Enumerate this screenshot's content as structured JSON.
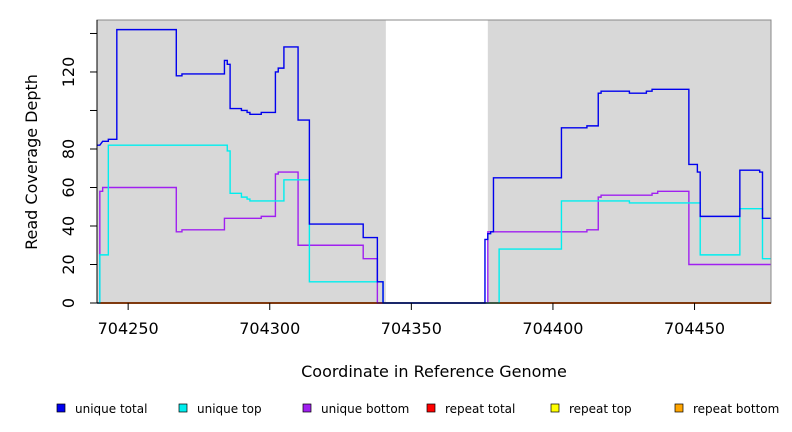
{
  "chart_data": {
    "type": "line",
    "title": "",
    "xlabel": "Coordinate in Reference Genome",
    "ylabel": "Read Coverage Depth",
    "xlim": [
      704239,
      704477
    ],
    "ylim": [
      0,
      147
    ],
    "x_ticks": [
      704250,
      704300,
      704350,
      704400,
      704450
    ],
    "x_tick_labels": [
      "704250",
      "704300",
      "704350",
      "704400",
      "704450"
    ],
    "y_ticks": [
      0,
      20,
      40,
      60,
      80,
      100,
      120,
      140
    ],
    "y_tick_labels": [
      "0",
      "20",
      "40",
      "60",
      "80",
      "",
      "120",
      ""
    ],
    "shaded_regions": [
      [
        704239,
        704341
      ],
      [
        704377,
        704477
      ]
    ],
    "shade_color": "#d8d8d8",
    "legend_position": "bottom",
    "series": [
      {
        "name": "unique total",
        "color": "#0000ee",
        "x": [
          704239,
          704240,
          704241,
          704243,
          704243,
          704246,
          704246,
          704267,
          704267,
          704269,
          704269,
          704284,
          704284,
          704285,
          704285,
          704286,
          704286,
          704290,
          704290,
          704292,
          704292,
          704293,
          704293,
          704297,
          704297,
          704302,
          704302,
          704303,
          704303,
          704305,
          704305,
          704310,
          704310,
          704314,
          704314,
          704333,
          704333,
          704338,
          704338,
          704340,
          704340,
          704341,
          704341,
          704376,
          704376,
          704377,
          704377,
          704378,
          704378,
          704379,
          704379,
          704380,
          704380,
          704403,
          704403,
          704412,
          704412,
          704416,
          704416,
          704417,
          704417,
          704427,
          704427,
          704433,
          704433,
          704435,
          704435,
          704448,
          704448,
          704451,
          704451,
          704452,
          704452,
          704466,
          704466,
          704473,
          704473,
          704474,
          704474,
          704477
        ],
        "y": [
          82,
          82,
          84,
          84,
          85,
          85,
          142,
          142,
          118,
          118,
          119,
          119,
          126,
          126,
          124,
          124,
          101,
          101,
          100,
          100,
          99,
          99,
          98,
          98,
          99,
          99,
          120,
          120,
          122,
          122,
          133,
          133,
          95,
          95,
          41,
          41,
          34,
          34,
          11,
          11,
          0,
          0,
          0,
          0,
          33,
          33,
          36,
          36,
          37,
          37,
          65,
          65,
          65,
          65,
          91,
          91,
          92,
          92,
          109,
          109,
          110,
          110,
          109,
          109,
          110,
          110,
          111,
          111,
          72,
          72,
          68,
          68,
          45,
          45,
          69,
          69,
          68,
          68,
          44,
          44
        ]
      },
      {
        "name": "unique top",
        "color": "#00eeee",
        "x": [
          704239,
          704240,
          704240,
          704243,
          704243,
          704285,
          704285,
          704286,
          704286,
          704290,
          704290,
          704292,
          704292,
          704293,
          704293,
          704305,
          704305,
          704314,
          704314,
          704340,
          704340,
          704381,
          704381,
          704403,
          704403,
          704427,
          704427,
          704452,
          704452,
          704466,
          704466,
          704474,
          704474,
          704477
        ],
        "y": [
          0,
          0,
          25,
          25,
          82,
          82,
          79,
          79,
          57,
          57,
          55,
          55,
          54,
          54,
          53,
          53,
          64,
          64,
          11,
          11,
          0,
          0,
          28,
          28,
          53,
          53,
          52,
          52,
          25,
          25,
          49,
          49,
          23,
          23
        ]
      },
      {
        "name": "unique bottom",
        "color": "#a020f0",
        "x": [
          704239,
          704240,
          704240,
          704241,
          704241,
          704267,
          704267,
          704269,
          704269,
          704284,
          704284,
          704297,
          704297,
          704302,
          704302,
          704303,
          704303,
          704310,
          704310,
          704333,
          704333,
          704338,
          704338,
          704377,
          704377,
          704412,
          704412,
          704416,
          704416,
          704417,
          704417,
          704435,
          704435,
          704437,
          704437,
          704448,
          704448,
          704477
        ],
        "y": [
          0,
          0,
          58,
          58,
          60,
          60,
          37,
          37,
          38,
          38,
          44,
          44,
          45,
          45,
          67,
          67,
          68,
          68,
          30,
          30,
          23,
          23,
          0,
          0,
          37,
          37,
          38,
          38,
          55,
          55,
          56,
          56,
          57,
          57,
          58,
          58,
          20,
          20
        ]
      },
      {
        "name": "repeat total",
        "color": "#ff0000",
        "x": [
          704239,
          704477
        ],
        "y": [
          0,
          0
        ]
      },
      {
        "name": "repeat top",
        "color": "#ffff00",
        "x": [
          704239,
          704477
        ],
        "y": [
          0,
          0
        ]
      },
      {
        "name": "repeat bottom",
        "color": "#ffa500",
        "x": [
          704239,
          704477
        ],
        "y": [
          0,
          0
        ]
      }
    ]
  }
}
